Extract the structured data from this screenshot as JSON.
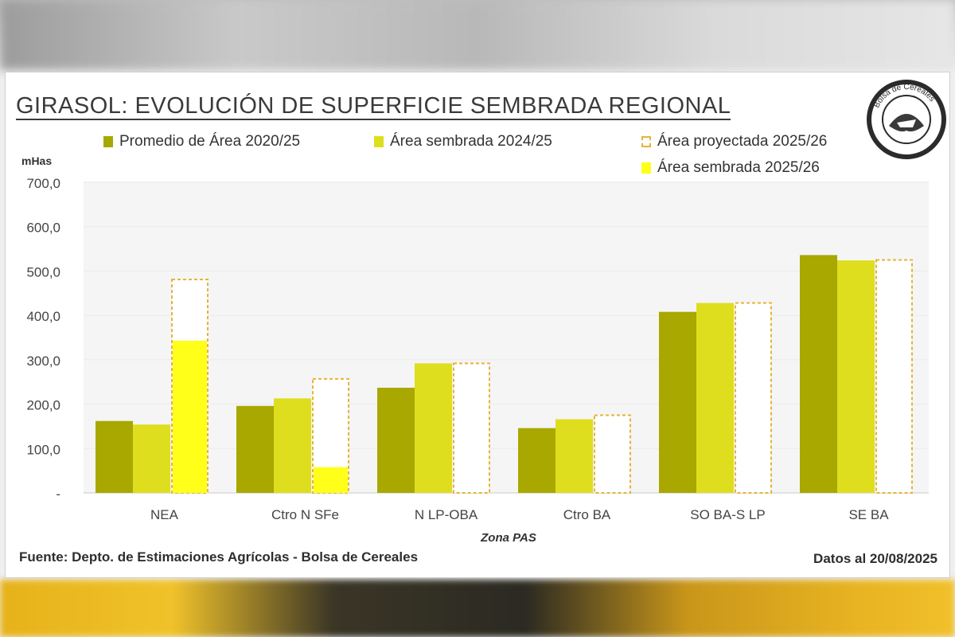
{
  "colors": {
    "avg": "#a8a800",
    "sown_2425": "#dede1e",
    "projected_border": "#e6b33a",
    "sown_2526": "#ffff1a",
    "text": "#333333"
  },
  "chart_data": {
    "type": "bar",
    "title": "GIRASOL: EVOLUCIÓN DE SUPERFICIE SEMBRADA REGIONAL",
    "ylabel": "mHas",
    "xlabel": "Zona PAS",
    "ylim": [
      0,
      700
    ],
    "yticks": [
      "-",
      "100,0",
      "200,0",
      "300,0",
      "400,0",
      "500,0",
      "600,0",
      "700,0"
    ],
    "ytick_values": [
      0,
      100,
      200,
      300,
      400,
      500,
      600,
      700
    ],
    "categories": [
      "NEA",
      "Ctro N SFe",
      "N LP-OBA",
      "Ctro BA",
      "SO BA-S LP",
      "SE BA"
    ],
    "series": [
      {
        "name": "Promedio de Área 2020/25",
        "values": [
          162,
          196,
          237,
          146,
          408,
          536
        ]
      },
      {
        "name": "Área sembrada 2024/25",
        "values": [
          154,
          213,
          292,
          166,
          428,
          524
        ]
      },
      {
        "name": "Área proyectada 2025/26",
        "values": [
          481,
          257,
          292,
          175,
          428,
          525
        ]
      },
      {
        "name": "Área sembrada 2025/26",
        "values": [
          343,
          58,
          0,
          0,
          0,
          0
        ]
      }
    ],
    "legend_position": "top"
  },
  "footer": {
    "source": "Fuente: Depto. de Estimaciones Agrícolas - Bolsa de Cereales",
    "date": "Datos al 20/08/2025"
  },
  "seal": {
    "text": "Bolsa de Cereales"
  }
}
